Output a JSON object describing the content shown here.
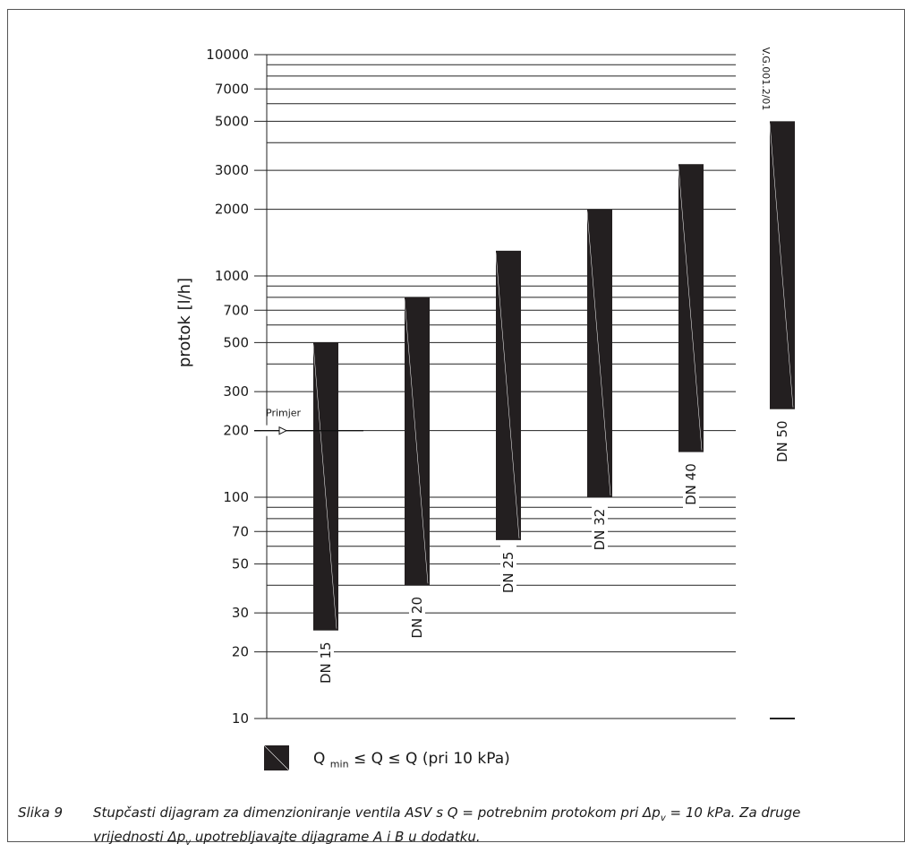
{
  "chart_data": {
    "type": "bar",
    "subtype": "floating-range",
    "ylabel": "protok [l/h]",
    "yscale": "log",
    "ylim": [
      10,
      10000
    ],
    "yticks": [
      10,
      20,
      30,
      50,
      70,
      100,
      200,
      300,
      500,
      700,
      1000,
      2000,
      3000,
      5000,
      7000,
      10000
    ],
    "ytick_labels": [
      "10",
      "20",
      "30",
      "50",
      "70",
      "100",
      "200",
      "300",
      "500",
      "700",
      "1000",
      "2000",
      "3000",
      "5000",
      "7000",
      "10000"
    ],
    "grid": true,
    "categories": [
      "DN 15",
      "DN 20",
      "DN 25",
      "DN 32",
      "DN 40",
      "DN 50"
    ],
    "ranges": [
      {
        "label": "DN 15",
        "min": 25,
        "max": 500
      },
      {
        "label": "DN 20",
        "min": 40,
        "max": 800
      },
      {
        "label": "DN 25",
        "min": 64,
        "max": 1300
      },
      {
        "label": "DN 32",
        "min": 100,
        "max": 2000
      },
      {
        "label": "DN 40",
        "min": 160,
        "max": 3200
      },
      {
        "label": "DN 50",
        "min": 250,
        "max": 5000
      }
    ],
    "example": {
      "label": "Primjer",
      "value": 200
    },
    "code": "V.G.001.2/01",
    "bar_color": "#231f20"
  },
  "legend": {
    "q": "Q",
    "min_sub": "min",
    "rest": "≤ Q ≤ Q (pri 10 kPa)"
  },
  "caption": {
    "number": "Slika 9",
    "line1_a": "Stupčasti dijagram za dimenzioniranje ventila ASV s Q = potrebnim protokom pri Δp",
    "line1_sub": "v",
    "line1_b": " = 10 kPa. Za druge",
    "line2_a": "vrijednosti Δp",
    "line2_sub": "v",
    "line2_b": " upotrebljavajte dijagrame A i B u dodatku."
  }
}
